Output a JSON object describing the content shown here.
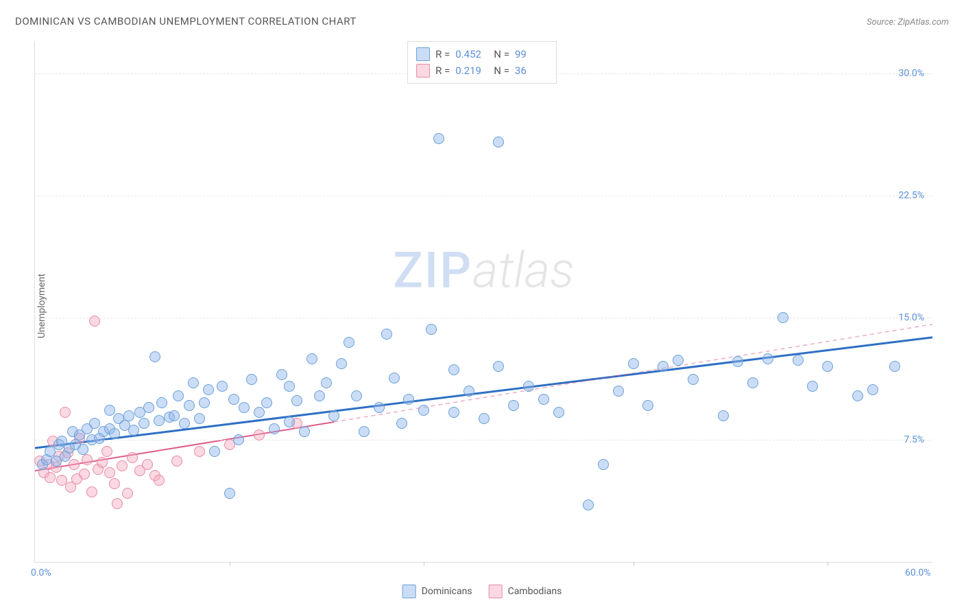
{
  "title": "DOMINICAN VS CAMBODIAN UNEMPLOYMENT CORRELATION CHART",
  "source_label": "Source: ZipAtlas.com",
  "ylabel": "Unemployment",
  "watermark_zip": "ZIP",
  "watermark_atlas": "atlas",
  "chart": {
    "type": "scatter",
    "xlim": [
      0,
      60
    ],
    "ylim": [
      0,
      32
    ],
    "x_ticks": [
      0.0,
      60.0
    ],
    "x_tick_labels": [
      "0.0%",
      "60.0%"
    ],
    "x_tick_marks": [
      13,
      26,
      40,
      53
    ],
    "y_gridlines": [
      7.5,
      15.0,
      22.5,
      30.0
    ],
    "y_tick_labels": [
      "7.5%",
      "15.0%",
      "22.5%",
      "30.0%"
    ],
    "background_color": "#ffffff",
    "grid_color": "#e8e8e8",
    "axis_color": "#dddddd",
    "tick_label_color": "#5b8fd6",
    "point_radius": 8,
    "point_border_width": 1
  },
  "series": {
    "dominicans": {
      "label": "Dominicans",
      "point_fill": "rgba(140, 180, 235, 0.45)",
      "point_stroke": "#6a9fd8",
      "trend_color": "#2e6fc4",
      "trend_width": 3,
      "trend_dash_color": "#2e6fc4",
      "R": "0.452",
      "N": "99",
      "trend_solid": {
        "x1": 0,
        "y1": 7.0,
        "x2": 60,
        "y2": 13.8
      },
      "points": [
        [
          0.5,
          6.0
        ],
        [
          0.8,
          6.3
        ],
        [
          1.0,
          6.8
        ],
        [
          1.4,
          6.2
        ],
        [
          1.6,
          7.2
        ],
        [
          1.8,
          7.4
        ],
        [
          2.0,
          6.5
        ],
        [
          2.3,
          7.0
        ],
        [
          2.5,
          8.0
        ],
        [
          2.7,
          7.2
        ],
        [
          3.0,
          7.8
        ],
        [
          3.2,
          6.9
        ],
        [
          3.5,
          8.2
        ],
        [
          3.8,
          7.5
        ],
        [
          4.0,
          8.5
        ],
        [
          4.3,
          7.6
        ],
        [
          4.6,
          8.0
        ],
        [
          5.0,
          9.3
        ],
        [
          5.0,
          8.2
        ],
        [
          5.3,
          7.9
        ],
        [
          5.6,
          8.8
        ],
        [
          6.0,
          8.4
        ],
        [
          6.3,
          9.0
        ],
        [
          6.6,
          8.1
        ],
        [
          7.0,
          9.2
        ],
        [
          7.3,
          8.5
        ],
        [
          7.6,
          9.5
        ],
        [
          8.0,
          12.6
        ],
        [
          8.3,
          8.7
        ],
        [
          8.5,
          9.8
        ],
        [
          9.0,
          8.9
        ],
        [
          9.3,
          9.0
        ],
        [
          9.6,
          10.2
        ],
        [
          10.0,
          8.5
        ],
        [
          10.3,
          9.6
        ],
        [
          10.6,
          11.0
        ],
        [
          11.0,
          8.8
        ],
        [
          11.3,
          9.8
        ],
        [
          11.6,
          10.6
        ],
        [
          12.0,
          6.8
        ],
        [
          12.5,
          10.8
        ],
        [
          13.0,
          4.2
        ],
        [
          13.3,
          10.0
        ],
        [
          13.6,
          7.5
        ],
        [
          14.0,
          9.5
        ],
        [
          14.5,
          11.2
        ],
        [
          15.0,
          9.2
        ],
        [
          15.5,
          9.8
        ],
        [
          16.0,
          8.2
        ],
        [
          16.5,
          11.5
        ],
        [
          17.0,
          10.8
        ],
        [
          17.0,
          8.6
        ],
        [
          17.5,
          9.9
        ],
        [
          18.0,
          8.0
        ],
        [
          18.5,
          12.5
        ],
        [
          19.0,
          10.2
        ],
        [
          19.5,
          11.0
        ],
        [
          20.0,
          9.0
        ],
        [
          20.5,
          12.2
        ],
        [
          21.0,
          13.5
        ],
        [
          21.5,
          10.2
        ],
        [
          22.0,
          8.0
        ],
        [
          23.0,
          9.5
        ],
        [
          23.5,
          14.0
        ],
        [
          24.0,
          11.3
        ],
        [
          24.5,
          8.5
        ],
        [
          25.0,
          10.0
        ],
        [
          26.0,
          9.3
        ],
        [
          26.5,
          14.3
        ],
        [
          27.0,
          26.0
        ],
        [
          28.0,
          9.2
        ],
        [
          28.0,
          11.8
        ],
        [
          29.0,
          10.5
        ],
        [
          30.0,
          8.8
        ],
        [
          31.0,
          25.8
        ],
        [
          31.0,
          12.0
        ],
        [
          32.0,
          9.6
        ],
        [
          33.0,
          10.8
        ],
        [
          34.0,
          10.0
        ],
        [
          35.0,
          9.2
        ],
        [
          37.0,
          3.5
        ],
        [
          38.0,
          6.0
        ],
        [
          39.0,
          10.5
        ],
        [
          40.0,
          12.2
        ],
        [
          41.0,
          9.6
        ],
        [
          42.0,
          12.0
        ],
        [
          43.0,
          12.4
        ],
        [
          44.0,
          11.2
        ],
        [
          46.0,
          9.0
        ],
        [
          47.0,
          12.3
        ],
        [
          48.0,
          11.0
        ],
        [
          49.0,
          12.5
        ],
        [
          50.0,
          15.0
        ],
        [
          51.0,
          12.4
        ],
        [
          52.0,
          10.8
        ],
        [
          53.0,
          12.0
        ],
        [
          55.0,
          10.2
        ],
        [
          56.0,
          10.6
        ],
        [
          57.5,
          12.0
        ]
      ]
    },
    "cambodians": {
      "label": "Cambodians",
      "point_fill": "rgba(245, 170, 190, 0.45)",
      "point_stroke": "#e88aa5",
      "trend_color": "#e05a8a",
      "trend_width": 2,
      "trend_dash_color": "rgba(224, 90, 138, 0.5)",
      "R": "0.219",
      "N": "36",
      "trend_solid": {
        "x1": 0,
        "y1": 5.6,
        "x2": 20,
        "y2": 8.6
      },
      "trend_dash": {
        "x1": 20,
        "y1": 8.6,
        "x2": 60,
        "y2": 14.6
      },
      "points": [
        [
          0.3,
          6.2
        ],
        [
          0.6,
          5.5
        ],
        [
          0.9,
          6.0
        ],
        [
          1.0,
          5.2
        ],
        [
          1.2,
          7.4
        ],
        [
          1.4,
          5.8
        ],
        [
          1.6,
          6.5
        ],
        [
          1.8,
          5.0
        ],
        [
          2.0,
          9.2
        ],
        [
          2.2,
          6.7
        ],
        [
          2.4,
          4.6
        ],
        [
          2.6,
          6.0
        ],
        [
          2.8,
          5.1
        ],
        [
          3.0,
          7.6
        ],
        [
          3.3,
          5.4
        ],
        [
          3.5,
          6.3
        ],
        [
          3.8,
          4.3
        ],
        [
          4.0,
          14.8
        ],
        [
          4.2,
          5.7
        ],
        [
          4.5,
          6.1
        ],
        [
          4.8,
          6.8
        ],
        [
          5.0,
          5.5
        ],
        [
          5.3,
          4.8
        ],
        [
          5.5,
          3.6
        ],
        [
          5.8,
          5.9
        ],
        [
          6.2,
          4.2
        ],
        [
          6.5,
          6.4
        ],
        [
          7.0,
          5.6
        ],
        [
          7.5,
          6.0
        ],
        [
          8.0,
          5.3
        ],
        [
          8.3,
          5.0
        ],
        [
          9.5,
          6.2
        ],
        [
          11.0,
          6.8
        ],
        [
          13.0,
          7.2
        ],
        [
          15.0,
          7.8
        ],
        [
          17.5,
          8.5
        ]
      ]
    }
  },
  "stats_labels": {
    "R": "R =",
    "N": "N ="
  }
}
